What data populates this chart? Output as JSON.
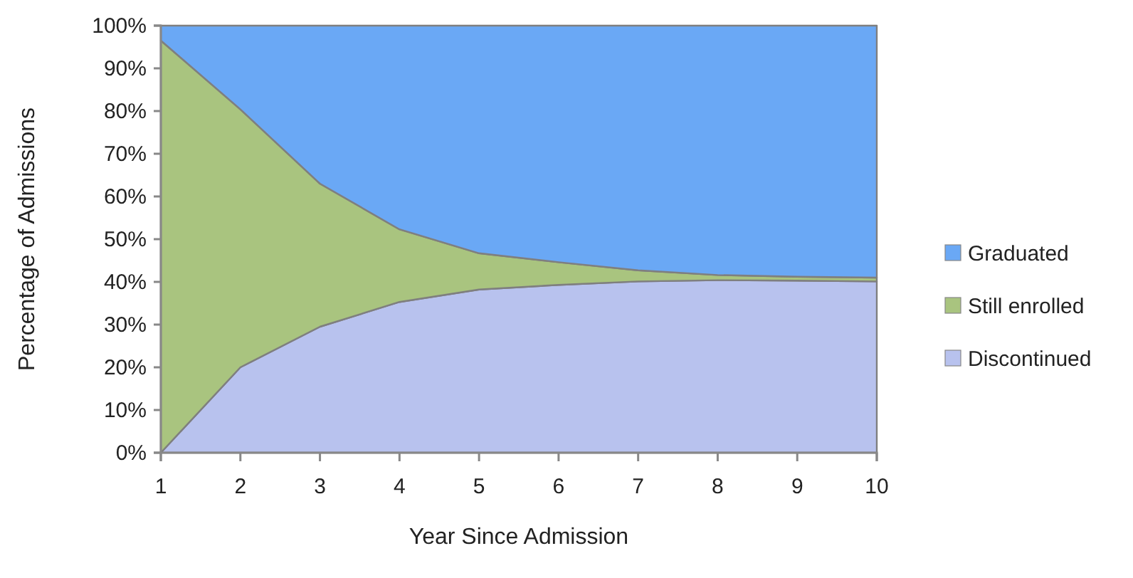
{
  "chart_data": {
    "type": "area",
    "stacked": true,
    "xlabel": "Year Since Admission",
    "ylabel": "Percentage of Admissions",
    "categories": [
      "1",
      "2",
      "3",
      "4",
      "5",
      "6",
      "7",
      "8",
      "9",
      "10"
    ],
    "series": [
      {
        "name": "Discontinued",
        "color": "#b8c2ee",
        "values": [
          0,
          20,
          29.5,
          35.3,
          38.2,
          39.3,
          40.1,
          40.4,
          40.3,
          40.1
        ]
      },
      {
        "name": "Still enrolled",
        "color": "#a9c47f",
        "values": [
          96.5,
          60.4,
          33.5,
          17,
          8.5,
          5.3,
          2.6,
          1.2,
          0.9,
          0.9
        ]
      },
      {
        "name": "Graduated",
        "color": "#6aa8f5",
        "values": [
          3.5,
          19.6,
          37,
          47.7,
          53.3,
          55.4,
          57.3,
          58.4,
          58.8,
          59
        ]
      }
    ],
    "ylim": [
      0,
      100
    ],
    "yticks": [
      {
        "value": 0,
        "label": "0%"
      },
      {
        "value": 10,
        "label": "10%"
      },
      {
        "value": 20,
        "label": "20%"
      },
      {
        "value": 30,
        "label": "30%"
      },
      {
        "value": 40,
        "label": "40%"
      },
      {
        "value": 50,
        "label": "50%"
      },
      {
        "value": 60,
        "label": "60%"
      },
      {
        "value": 70,
        "label": "70%"
      },
      {
        "value": 80,
        "label": "80%"
      },
      {
        "value": 90,
        "label": "90%"
      },
      {
        "value": 100,
        "label": "100%"
      }
    ],
    "legend": "right"
  }
}
